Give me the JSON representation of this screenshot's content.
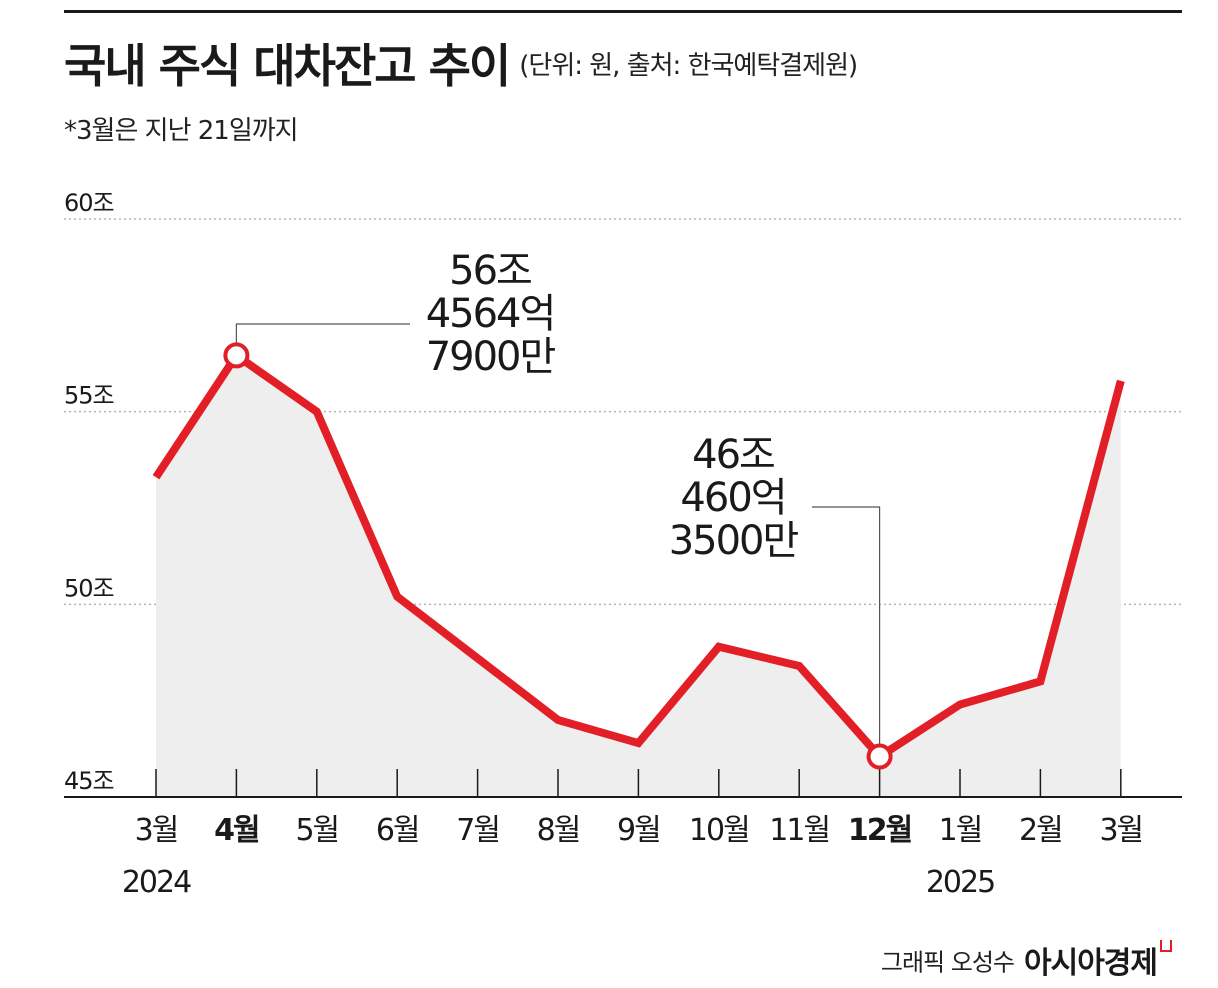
{
  "header": {
    "title": "국내 주식 대차잔고 추이",
    "unit_note": "(단위: 원, 출처: 한국예탁결제원)",
    "footnote": "*3월은 지난 21일까지"
  },
  "footer": {
    "credit": "그래픽 오성수",
    "brand": "아시아경제"
  },
  "colors": {
    "line": "#e21e26",
    "area": "#eeeeee",
    "grid": "#b5b5b5",
    "axis": "#1a1a1a",
    "text": "#1a1a1a",
    "brand_mark": "#e21e26"
  },
  "chart_data": {
    "type": "line",
    "title": "국내 주식 대차잔고 추이",
    "categories": [
      "3월",
      "4월",
      "5월",
      "6월",
      "7월",
      "8월",
      "9월",
      "10월",
      "11월",
      "12월",
      "1월",
      "2월",
      "3월"
    ],
    "bold_categories": [
      1,
      9
    ],
    "year_labels": [
      {
        "index": 0,
        "label": "2024"
      },
      {
        "index": 10,
        "label": "2025"
      }
    ],
    "series": [
      {
        "values": [
          53.3,
          56.46,
          55.0,
          50.2,
          48.6,
          47.0,
          46.4,
          48.9,
          48.4,
          46.05,
          47.4,
          48.0,
          55.8
        ]
      }
    ],
    "ylim": [
      45,
      60
    ],
    "yticks": [
      45,
      50,
      55,
      60
    ],
    "ytick_labels": [
      "45조",
      "50조",
      "55조",
      "60조"
    ],
    "grid": true,
    "area_fill": true,
    "annotations": [
      {
        "index": 1,
        "lines": [
          "56조",
          "4564억",
          "7900만"
        ]
      },
      {
        "index": 9,
        "lines": [
          "46조",
          "460억",
          "3500만"
        ]
      }
    ]
  }
}
